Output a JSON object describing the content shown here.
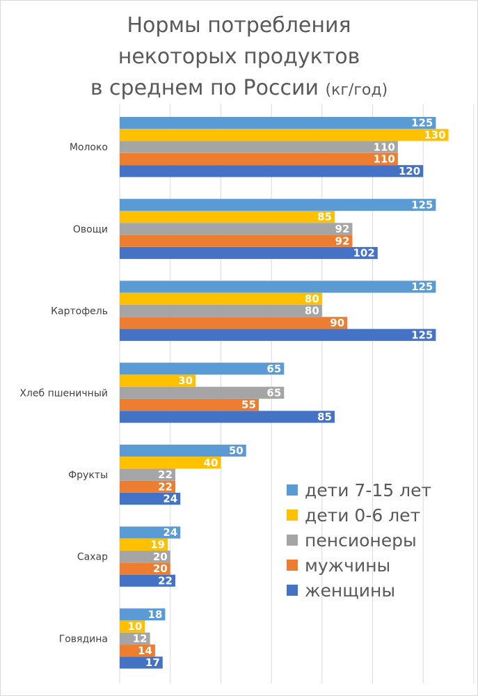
{
  "chart_data": {
    "type": "bar",
    "orientation": "horizontal",
    "title": "Нормы потребления некоторых продуктов в среднем по России",
    "title_unit": "(кг/год)",
    "categories": [
      "Молоко",
      "Овощи",
      "Картофель",
      "Хлеб пшеничный",
      "Фрукты",
      "Сахар",
      "Говядина"
    ],
    "series": [
      {
        "name": "дети 7-15 лет",
        "color": "#5b9bd5",
        "values": [
          125,
          125,
          125,
          65,
          50,
          24,
          18
        ]
      },
      {
        "name": "дети 0-6 лет",
        "color": "#ffc000",
        "values": [
          130,
          85,
          80,
          30,
          40,
          19,
          10
        ]
      },
      {
        "name": "пенсионеры",
        "color": "#a5a5a5",
        "values": [
          110,
          92,
          80,
          65,
          22,
          20,
          12
        ]
      },
      {
        "name": "мужчины",
        "color": "#ed7d31",
        "values": [
          110,
          92,
          90,
          55,
          22,
          20,
          14
        ]
      },
      {
        "name": "женщины",
        "color": "#4472c4",
        "values": [
          120,
          102,
          125,
          85,
          24,
          22,
          17
        ]
      }
    ],
    "xlim": [
      0,
      140
    ],
    "grid_step": 20,
    "grid": true,
    "legend_position": "bottom-right"
  }
}
